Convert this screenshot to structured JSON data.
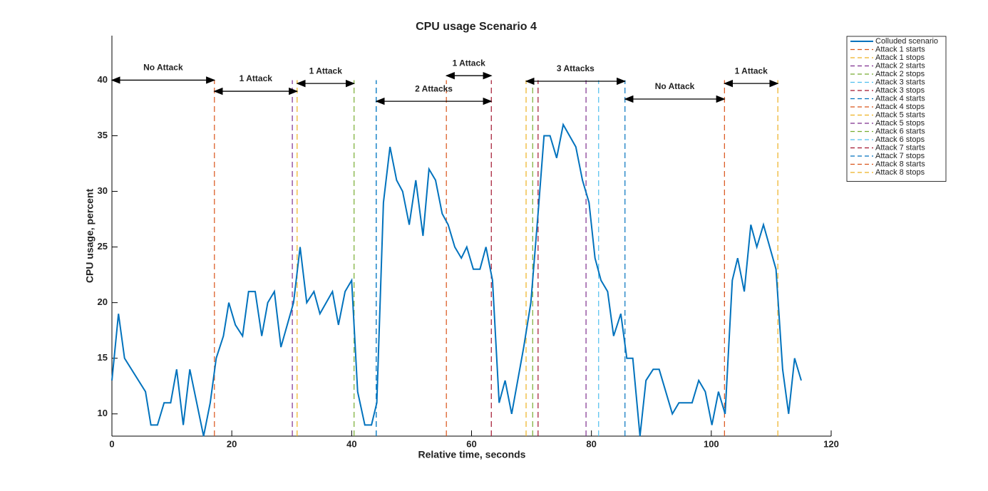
{
  "chart_data": {
    "type": "line",
    "title": "CPU usage Scenario 4",
    "xlabel": "Relative time, seconds",
    "ylabel": "CPU usage, percent",
    "xlim": [
      0,
      120
    ],
    "xticks": [
      0,
      20,
      40,
      60,
      80,
      100,
      120
    ],
    "ylim": [
      8,
      44
    ],
    "yticks": [
      10,
      15,
      20,
      25,
      30,
      35,
      40
    ],
    "grid": false,
    "legend": "northeast-outside",
    "x": [
      0,
      1.1,
      2.1,
      5.6,
      6.5,
      7.6,
      8.7,
      9.8,
      10.8,
      11.9,
      13,
      15.3,
      16.4,
      17.4,
      18.6,
      19.5,
      20.6,
      21.8,
      22.8,
      23.9,
      25,
      26,
      27.1,
      28.2,
      30.3,
      31.4,
      32.5,
      33.7,
      34.7,
      36.8,
      37.8,
      38.9,
      40,
      41,
      42.2,
      43.3,
      44.2,
      45.3,
      46.4,
      47.5,
      48.5,
      49.6,
      50.7,
      51.9,
      52.9,
      54,
      55.1,
      56.1,
      57.2,
      58.3,
      59.2,
      60.3,
      61.4,
      62.4,
      63.5,
      64.6,
      65.6,
      66.7,
      68.7,
      69.9,
      71.1,
      72.1,
      73.1,
      74.2,
      75.3,
      77.4,
      78.5,
      79.6,
      80.6,
      81.6,
      82.7,
      83.7,
      84.9,
      85.9,
      86.9,
      88.1,
      89.1,
      90.3,
      91.3,
      93.5,
      94.6,
      96.8,
      97.9,
      99,
      100.1,
      101.2,
      102.3,
      103.5,
      104.4,
      105.5,
      106.6,
      107.6,
      108.7,
      110.8,
      111.9,
      112.9,
      113.9,
      115
    ],
    "series": [
      {
        "name": "Colluded scenario",
        "color": "#0072BD",
        "values": [
          13,
          19,
          15,
          12,
          9,
          9,
          11,
          11,
          14,
          9,
          14,
          8,
          11,
          15,
          17,
          20,
          18,
          17,
          21,
          21,
          17,
          20,
          21,
          16,
          20,
          25,
          20,
          21,
          19,
          21,
          18,
          21,
          22,
          12,
          9,
          9,
          11,
          29,
          34,
          31,
          30,
          27,
          31,
          26,
          32,
          31,
          28,
          27,
          25,
          24,
          25,
          23,
          23,
          25,
          22,
          11,
          13,
          10,
          16,
          20,
          28,
          35,
          35,
          33,
          36,
          34,
          31,
          29,
          24,
          22,
          21,
          17,
          19,
          15,
          15,
          8,
          13,
          14,
          14,
          10,
          11,
          11,
          13,
          12,
          9,
          12,
          10,
          22,
          24,
          21,
          27,
          25,
          27,
          23,
          14,
          10,
          15,
          13
        ]
      }
    ],
    "vlines": [
      {
        "name": "Attack 1 starts",
        "color": "#D95319",
        "x": 17.1
      },
      {
        "name": "Attack 1 stops",
        "color": "#EDB120",
        "x": 30.9
      },
      {
        "name": "Attack 2 starts",
        "color": "#7E2F8E",
        "x": 30.1
      },
      {
        "name": "Attack 2 stops",
        "color": "#77AC30",
        "x": 40.4
      },
      {
        "name": "Attack 3 starts",
        "color": "#4DBEEE",
        "x": 44.1
      },
      {
        "name": "Attack 3 stops",
        "color": "#A2142F",
        "x": 63.3
      },
      {
        "name": "Attack 4 starts",
        "color": "#0072BD",
        "x": 44.1
      },
      {
        "name": "Attack 4 stops",
        "color": "#D95319",
        "x": 55.8
      },
      {
        "name": "Attack 5 starts",
        "color": "#EDB120",
        "x": 69.1
      },
      {
        "name": "Attack 5 stops",
        "color": "#7E2F8E",
        "x": 79.1
      },
      {
        "name": "Attack 6 starts",
        "color": "#77AC30",
        "x": 70.2
      },
      {
        "name": "Attack 6 stops",
        "color": "#4DBEEE",
        "x": 81.2
      },
      {
        "name": "Attack 7 starts",
        "color": "#A2142F",
        "x": 71.1
      },
      {
        "name": "Attack 7 stops",
        "color": "#0072BD",
        "x": 85.6
      },
      {
        "name": "Attack 8 starts",
        "color": "#D95319",
        "x": 102.2
      },
      {
        "name": "Attack 8 stops",
        "color": "#EDB120",
        "x": 111.1
      }
    ],
    "annotations": [
      {
        "text": "No Attack",
        "x": [
          0,
          17.1
        ],
        "y": 40
      },
      {
        "text": "1 Attack",
        "x": [
          17.1,
          30.9
        ],
        "y": 39
      },
      {
        "text": "1 Attack",
        "x": [
          30.9,
          40.4
        ],
        "y": 39.7
      },
      {
        "text": "2 Attacks",
        "x": [
          44.1,
          63.3
        ],
        "y": 38.1
      },
      {
        "text": "1 Attack",
        "x": [
          55.8,
          63.3
        ],
        "y": 40.4
      },
      {
        "text": "3 Attacks",
        "x": [
          69.1,
          85.6
        ],
        "y": 39.9
      },
      {
        "text": "No Attack",
        "x": [
          85.6,
          102.2
        ],
        "y": 38.3
      },
      {
        "text": "1 Attack",
        "x": [
          102.2,
          111.1
        ],
        "y": 39.7
      }
    ]
  }
}
